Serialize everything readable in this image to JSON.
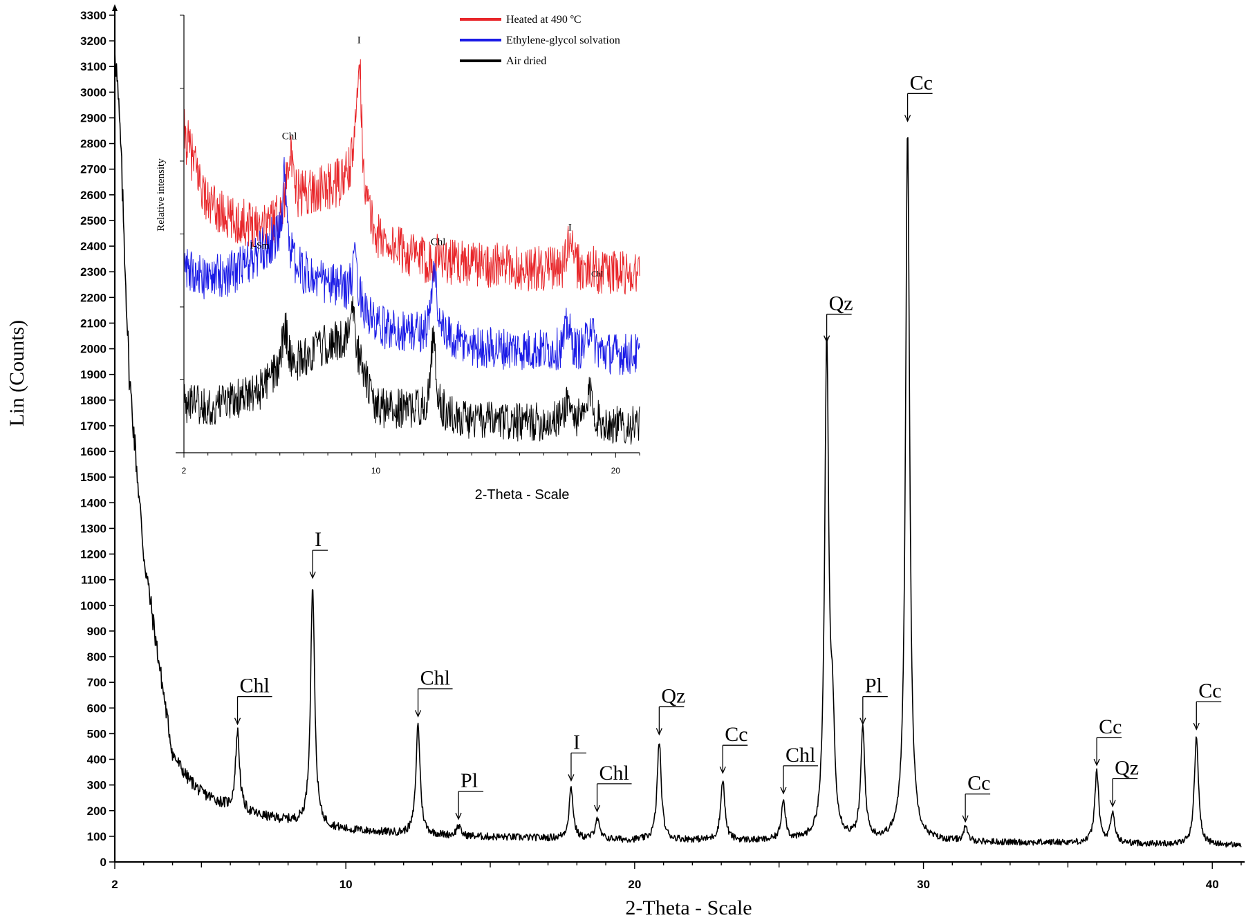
{
  "chart_data": [
    {
      "type": "line",
      "id": "main",
      "xlabel": "2-Theta - Scale",
      "ylabel": "Lin (Counts)",
      "xlim": [
        2,
        41
      ],
      "ylim": [
        0,
        3300
      ],
      "x_ticks": [
        2,
        10,
        20,
        30,
        40
      ],
      "x_tick_labels": [
        "2",
        "10",
        "20",
        "30",
        "40"
      ],
      "y_ticks": [
        0,
        100,
        200,
        300,
        400,
        500,
        600,
        700,
        800,
        900,
        1000,
        1100,
        1200,
        1300,
        1400,
        1500,
        1600,
        1700,
        1800,
        1900,
        2000,
        2100,
        2200,
        2300,
        2400,
        2500,
        2600,
        2700,
        2800,
        2900,
        3000,
        3100,
        3200,
        3300
      ],
      "y_tick_labels": [
        "0",
        "100",
        "200",
        "300",
        "400",
        "500",
        "600",
        "700",
        "800",
        "900",
        "1000",
        "1100",
        "1200",
        "1300",
        "1400",
        "1500",
        "1600",
        "1700",
        "1800",
        "1900",
        "2000",
        "2100",
        "2200",
        "2300",
        "2400",
        "2500",
        "2600",
        "2700",
        "2800",
        "2900",
        "3000",
        "3100",
        "3200",
        "3300"
      ],
      "series": [
        {
          "color": "#000000",
          "background": [
            [
              2,
              3200
            ],
            [
              2.2,
              2800
            ],
            [
              2.5,
              1900
            ],
            [
              3,
              1200
            ],
            [
              3.5,
              800
            ],
            [
              4,
              420
            ],
            [
              4.5,
              330
            ],
            [
              5,
              270
            ],
            [
              6,
              210
            ],
            [
              7,
              180
            ],
            [
              8,
              160
            ],
            [
              9,
              140
            ],
            [
              10,
              125
            ],
            [
              12,
              110
            ],
            [
              14,
              100
            ],
            [
              16,
              95
            ],
            [
              18,
              90
            ],
            [
              20,
              85
            ],
            [
              22,
              85
            ],
            [
              25,
              80
            ],
            [
              28,
              80
            ],
            [
              30,
              80
            ],
            [
              33,
              75
            ],
            [
              35,
              75
            ],
            [
              38,
              70
            ],
            [
              41,
              65
            ]
          ],
          "peaks": [
            {
              "x": 6.25,
              "y": 510,
              "label": "Chl"
            },
            {
              "x": 8.85,
              "y": 1080,
              "label": "I"
            },
            {
              "x": 12.5,
              "y": 540,
              "label": "Chl"
            },
            {
              "x": 13.9,
              "y": 140,
              "label": "Pl"
            },
            {
              "x": 17.8,
              "y": 290,
              "label": "I"
            },
            {
              "x": 18.7,
              "y": 170,
              "label": "Chl"
            },
            {
              "x": 20.85,
              "y": 470,
              "label": "Qz"
            },
            {
              "x": 23.05,
              "y": 320,
              "label": "Cc"
            },
            {
              "x": 25.15,
              "y": 240,
              "label": "Chl"
            },
            {
              "x": 26.65,
              "y": 2000,
              "label": "Qz"
            },
            {
              "x": 26.85,
              "y": 460,
              "label": ""
            },
            {
              "x": 27.9,
              "y": 510,
              "label": "Pl"
            },
            {
              "x": 29.45,
              "y": 2860,
              "label": "Cc"
            },
            {
              "x": 31.45,
              "y": 130,
              "label": "Cc"
            },
            {
              "x": 36.0,
              "y": 350,
              "label": "Cc"
            },
            {
              "x": 36.55,
              "y": 190,
              "label": "Qz"
            },
            {
              "x": 39.45,
              "y": 490,
              "label": "Cc"
            }
          ]
        }
      ]
    },
    {
      "type": "line",
      "id": "inset",
      "xlabel": "2-Theta - Scale",
      "ylabel": "Relative intensity",
      "xlim": [
        2,
        21
      ],
      "x_ticks": [
        2,
        10,
        20
      ],
      "x_tick_labels": [
        "2",
        "10",
        "20"
      ],
      "legend": {
        "placement": "top-right",
        "entries": [
          {
            "label": "Heated at 490 ºC",
            "color": "#e8262a"
          },
          {
            "label": "Ethylene-glycol solvation",
            "color": "#1a1ae6"
          },
          {
            "label": "Air dried",
            "color": "#000000"
          }
        ]
      },
      "series": [
        {
          "name": "Heated at 490 ºC",
          "color": "#e8262a",
          "background": [
            [
              2,
              2850
            ],
            [
              3,
              2560
            ],
            [
              4,
              2490
            ],
            [
              5,
              2480
            ],
            [
              6,
              2490
            ],
            [
              7,
              2600
            ],
            [
              8,
              2620
            ],
            [
              9,
              2650
            ],
            [
              10,
              2420
            ],
            [
              12,
              2330
            ],
            [
              14,
              2320
            ],
            [
              16,
              2300
            ],
            [
              18,
              2290
            ],
            [
              20,
              2280
            ],
            [
              21,
              2280
            ]
          ],
          "peaks": [
            {
              "x": 6.4,
              "y": 2790,
              "label": "Chl"
            },
            {
              "x": 9.3,
              "y": 3180,
              "label": "I"
            },
            {
              "x": 12.6,
              "y": 2360,
              "label": "Chl"
            },
            {
              "x": 18.1,
              "y": 2420,
              "label": "I"
            },
            {
              "x": 19.0,
              "y": 2300,
              "label": "Chl"
            }
          ]
        },
        {
          "name": "Ethylene-glycol solvation",
          "color": "#1a1ae6",
          "background": [
            [
              2,
              2290
            ],
            [
              3,
              2260
            ],
            [
              4,
              2280
            ],
            [
              5,
              2340
            ],
            [
              5.7,
              2400
            ],
            [
              6.5,
              2300
            ],
            [
              7.5,
              2250
            ],
            [
              9,
              2200
            ],
            [
              10,
              2060
            ],
            [
              12,
              2030
            ],
            [
              14,
              1980
            ],
            [
              16,
              1970
            ],
            [
              18,
              1960
            ],
            [
              20,
              1950
            ],
            [
              21,
              1950
            ]
          ],
          "peaks": [
            {
              "x": 6.2,
              "y": 2680,
              "label": "I-Sm"
            },
            {
              "x": 9.15,
              "y": 2320,
              "label": ""
            },
            {
              "x": 12.45,
              "y": 2300,
              "label": ""
            },
            {
              "x": 18.0,
              "y": 2070,
              "label": ""
            },
            {
              "x": 18.95,
              "y": 2080,
              "label": ""
            }
          ]
        },
        {
          "name": "Air dried",
          "color": "#000000",
          "background": [
            [
              2,
              1750
            ],
            [
              3,
              1740
            ],
            [
              4,
              1760
            ],
            [
              5,
              1790
            ],
            [
              6,
              1870
            ],
            [
              7,
              1930
            ],
            [
              8,
              1990
            ],
            [
              9,
              2000
            ],
            [
              10,
              1730
            ],
            [
              12,
              1720
            ],
            [
              14,
              1680
            ],
            [
              16,
              1670
            ],
            [
              18,
              1680
            ],
            [
              20,
              1660
            ],
            [
              21,
              1660
            ]
          ],
          "peaks": [
            {
              "x": 6.2,
              "y": 2070,
              "label": ""
            },
            {
              "x": 9.0,
              "y": 2140,
              "label": ""
            },
            {
              "x": 12.4,
              "y": 2010,
              "label": ""
            },
            {
              "x": 18.0,
              "y": 1770,
              "label": ""
            },
            {
              "x": 18.95,
              "y": 1800,
              "label": ""
            }
          ]
        }
      ]
    }
  ]
}
